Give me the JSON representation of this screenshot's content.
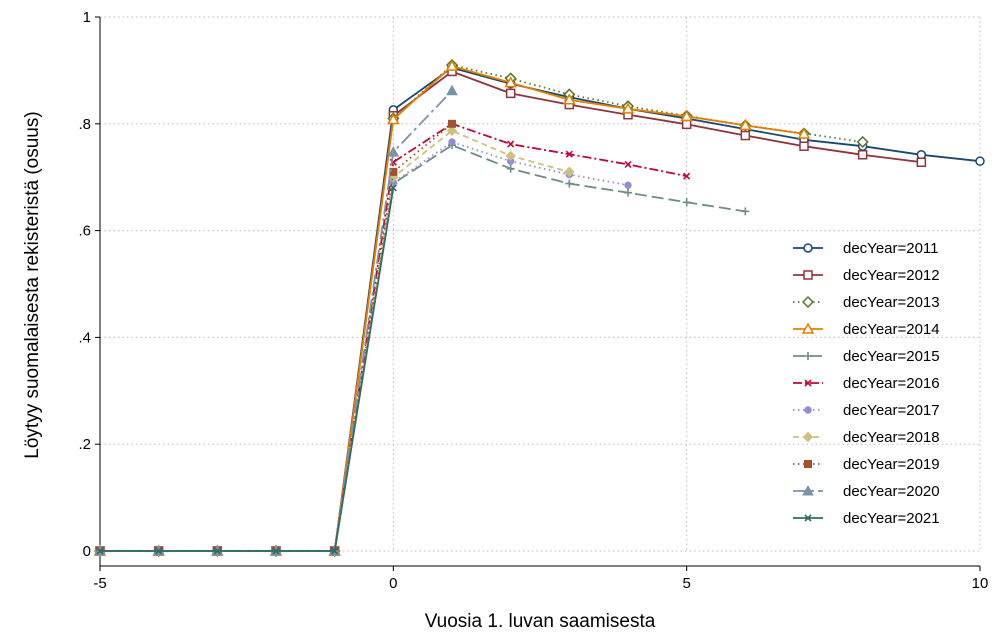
{
  "chart_data": {
    "type": "line",
    "title": "",
    "xlabel": "Vuosia 1. luvan saamisesta",
    "ylabel": "Löytyy suomalaisesta rekisteristä (osuus)",
    "xlim": [
      -5,
      10
    ],
    "ylim": [
      0,
      1
    ],
    "x_ticks": [
      -5,
      0,
      5,
      10
    ],
    "y_ticks": [
      0,
      0.2,
      0.4,
      0.6,
      0.8,
      1
    ],
    "x_tick_labels": [
      "-5",
      "0",
      "5",
      "10"
    ],
    "y_tick_labels": [
      "0",
      ".2",
      ".4",
      ".6",
      ".8",
      "1"
    ],
    "grid": "horizontal",
    "legend_position": "right",
    "series": [
      {
        "name": "decYear=2011",
        "color": "#1a476f",
        "marker": "circle-open",
        "dash": "solid",
        "x": [
          -5,
          -4,
          -3,
          -2,
          -1,
          0,
          1,
          2,
          3,
          4,
          5,
          6,
          7,
          8,
          9,
          10
        ],
        "y": [
          0,
          0,
          0,
          0,
          0,
          0.826,
          0.905,
          0.875,
          0.85,
          0.828,
          0.81,
          0.79,
          0.77,
          0.758,
          0.742,
          0.73
        ]
      },
      {
        "name": "decYear=2012",
        "color": "#90353b",
        "marker": "square-open",
        "dash": "solid",
        "x": [
          -5,
          -4,
          -3,
          -2,
          -1,
          0,
          1,
          2,
          3,
          4,
          5,
          6,
          7,
          8,
          9
        ],
        "y": [
          0,
          0,
          0,
          0,
          0,
          0.815,
          0.898,
          0.857,
          0.836,
          0.817,
          0.799,
          0.778,
          0.758,
          0.742,
          0.728
        ]
      },
      {
        "name": "decYear=2013",
        "color": "#55752f",
        "marker": "diamond-open",
        "dash": "dot",
        "x": [
          -5,
          -4,
          -3,
          -2,
          -1,
          0,
          1,
          2,
          3,
          4,
          5,
          6,
          7,
          8
        ],
        "y": [
          0,
          0,
          0,
          0,
          0,
          0.81,
          0.91,
          0.885,
          0.855,
          0.833,
          0.815,
          0.797,
          0.782,
          0.766
        ]
      },
      {
        "name": "decYear=2014",
        "color": "#e37e00",
        "marker": "triangle-open",
        "dash": "solid",
        "x": [
          -5,
          -4,
          -3,
          -2,
          -1,
          0,
          1,
          2,
          3,
          4,
          5,
          6,
          7
        ],
        "y": [
          0,
          0,
          0,
          0,
          0,
          0.808,
          0.908,
          0.877,
          0.845,
          0.828,
          0.814,
          0.797,
          0.781
        ]
      },
      {
        "name": "decYear=2015",
        "color": "#6e8e84",
        "marker": "plus",
        "dash": "longdash",
        "x": [
          -5,
          -4,
          -3,
          -2,
          -1,
          0,
          1,
          2,
          3,
          4,
          5,
          6
        ],
        "y": [
          0,
          0,
          0,
          0,
          0,
          0.688,
          0.76,
          0.716,
          0.688,
          0.671,
          0.653,
          0.636
        ]
      },
      {
        "name": "decYear=2016",
        "color": "#c10534",
        "marker": "x",
        "dash": "dashdot",
        "x": [
          -5,
          -4,
          -3,
          -2,
          -1,
          0,
          1,
          2,
          3,
          4,
          5
        ],
        "y": [
          0,
          0,
          0,
          0,
          0,
          0.728,
          0.8,
          0.762,
          0.743,
          0.724,
          0.702
        ]
      },
      {
        "name": "decYear=2017",
        "color": "#938dd2",
        "marker": "circle-filled",
        "dash": "dot",
        "x": [
          -5,
          -4,
          -3,
          -2,
          -1,
          0,
          1,
          2,
          3,
          4
        ],
        "y": [
          0,
          0,
          0,
          0,
          0,
          0.69,
          0.766,
          0.73,
          0.705,
          0.685
        ]
      },
      {
        "name": "decYear=2018",
        "color": "#cac27e",
        "marker": "diamond-filled",
        "dash": "dash",
        "x": [
          -5,
          -4,
          -3,
          -2,
          -1,
          0,
          1,
          2,
          3
        ],
        "y": [
          0,
          0,
          0,
          0,
          0,
          0.7,
          0.787,
          0.74,
          0.71
        ]
      },
      {
        "name": "decYear=2019",
        "color": "#a0522d",
        "marker": "square-filled",
        "dash": "dot",
        "x": [
          -5,
          -4,
          -3,
          -2,
          -1,
          0,
          1
        ],
        "y": [
          0,
          0,
          0,
          0,
          0,
          0.71,
          0.8
        ]
      },
      {
        "name": "decYear=2020",
        "color": "#7b92a8",
        "marker": "triangle-filled",
        "dash": "longdashdot",
        "x": [
          -5,
          -4,
          -3,
          -2,
          -1,
          0,
          1
        ],
        "y": [
          0,
          0,
          0,
          0,
          0,
          0.747,
          0.862
        ]
      },
      {
        "name": "decYear=2021",
        "color": "#2d6d66",
        "marker": "x",
        "dash": "solid",
        "x": [
          -5,
          -4,
          -3,
          -2,
          -1,
          0
        ],
        "y": [
          0,
          0,
          0,
          0,
          0,
          0.68
        ]
      }
    ]
  }
}
